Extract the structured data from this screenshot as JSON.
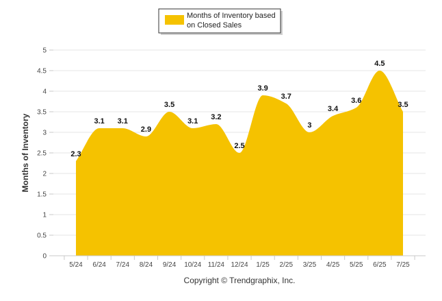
{
  "colors": {
    "area_fill": "#F5C200",
    "grid": "#E6E6E6",
    "axis": "#C8C8C8",
    "legend_border": "#333333"
  },
  "chart_data": {
    "type": "area",
    "categories": [
      "5/24",
      "6/24",
      "7/24",
      "8/24",
      "9/24",
      "10/24",
      "11/24",
      "12/24",
      "1/25",
      "2/25",
      "3/25",
      "4/25",
      "5/25",
      "6/25",
      "7/25"
    ],
    "series": [
      {
        "name": "Months of Inventory based on Closed Sales",
        "values": [
          2.3,
          3.1,
          3.1,
          2.9,
          3.5,
          3.1,
          3.2,
          2.5,
          3.9,
          3.7,
          3.0,
          3.4,
          3.6,
          4.5,
          3.5
        ],
        "data_labels": [
          "2.3",
          "3.1",
          "3.1",
          "2.9",
          "3.5",
          "3.1",
          "3.2",
          "2.5",
          "3.9",
          "3.7",
          "3",
          "3.4",
          "3.6",
          "4.5",
          "3.5"
        ],
        "color": "#F5C200"
      }
    ],
    "ylabel": "Months of Inventory",
    "ylim": [
      0,
      5
    ],
    "yticks": [
      "0",
      "0.5",
      "1",
      "1.5",
      "2",
      "2.5",
      "3",
      "3.5",
      "4",
      "4.5",
      "5"
    ],
    "grid": true,
    "smooth": true,
    "legend": {
      "position": "top-center",
      "lines": [
        "Months of Inventory based",
        "on Closed Sales"
      ]
    }
  },
  "footer": {
    "copyright": "Copyright © Trendgraphix, Inc."
  }
}
